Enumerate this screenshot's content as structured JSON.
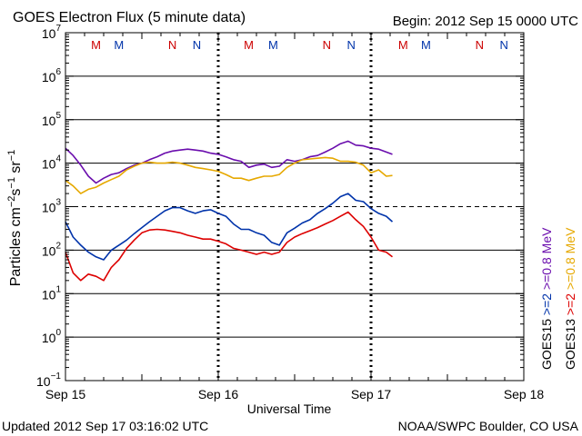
{
  "header": {
    "title": "GOES Electron Flux (5 minute data)",
    "begin": "Begin: 2012 Sep 15 0000 UTC"
  },
  "footer": {
    "updated": "Updated 2012 Sep 17 03:16:02 UTC",
    "credit": "NOAA/SWPC Boulder, CO USA"
  },
  "chart_data": {
    "type": "line",
    "title": "GOES Electron Flux (5 minute data)",
    "xlabel": "Universal Time",
    "ylabel": "Particles cm⁻²s⁻¹sr⁻¹",
    "yscale": "log",
    "ylim": [
      0.1,
      10000000
    ],
    "xlim": [
      0,
      3
    ],
    "x_units": "days since 2012 Sep 15 00:00 UTC",
    "x_ticks": [
      {
        "x": 0,
        "label": "Sep 15"
      },
      {
        "x": 1,
        "label": "Sep 16"
      },
      {
        "x": 2,
        "label": "Sep 17"
      },
      {
        "x": 3,
        "label": "Sep 18"
      }
    ],
    "y_ticks": [
      {
        "exp": 7,
        "base": "10",
        "sup": "7"
      },
      {
        "exp": 6,
        "base": "10",
        "sup": "6"
      },
      {
        "exp": 5,
        "base": "10",
        "sup": "5"
      },
      {
        "exp": 4,
        "base": "10",
        "sup": "4"
      },
      {
        "exp": 3,
        "base": "10",
        "sup": "3"
      },
      {
        "exp": 2,
        "base": "10",
        "sup": "2"
      },
      {
        "exp": 1,
        "base": "10",
        "sup": "1"
      },
      {
        "exp": 0,
        "base": "10",
        "sup": "0"
      },
      {
        "exp": -1,
        "base": "10",
        "sup": "−1"
      }
    ],
    "threshold_exp": 3,
    "day_markers": [
      1,
      2
    ],
    "mn_markers": [
      {
        "x": 0.2,
        "label": "M",
        "color": "#cc0000"
      },
      {
        "x": 0.35,
        "label": "M",
        "color": "#0033aa"
      },
      {
        "x": 0.7,
        "label": "N",
        "color": "#cc0000"
      },
      {
        "x": 0.86,
        "label": "N",
        "color": "#0033aa"
      },
      {
        "x": 1.2,
        "label": "M",
        "color": "#cc0000"
      },
      {
        "x": 1.36,
        "label": "M",
        "color": "#0033aa"
      },
      {
        "x": 1.71,
        "label": "N",
        "color": "#cc0000"
      },
      {
        "x": 1.87,
        "label": "N",
        "color": "#0033aa"
      },
      {
        "x": 2.21,
        "label": "M",
        "color": "#cc0000"
      },
      {
        "x": 2.36,
        "label": "M",
        "color": "#0033aa"
      },
      {
        "x": 2.71,
        "label": "N",
        "color": "#cc0000"
      },
      {
        "x": 2.87,
        "label": "N",
        "color": "#0033aa"
      }
    ],
    "legend": [
      {
        "text": "GOES15",
        "color": "#000000"
      },
      {
        "text": ">=2",
        "color": "#0033aa"
      },
      {
        "text": ">=0.8 MeV",
        "color": "#6a0dad"
      },
      {
        "text": "GOES13",
        "color": "#000000"
      },
      {
        "text": ">=2",
        "color": "#dd0000"
      },
      {
        "text": ">=0.8 MeV",
        "color": "#e6a800"
      }
    ],
    "series": [
      {
        "name": "GOES15 >=0.8 MeV",
        "color": "#6a0dad",
        "x": [
          0.0,
          0.05,
          0.1,
          0.15,
          0.2,
          0.25,
          0.3,
          0.35,
          0.4,
          0.45,
          0.5,
          0.55,
          0.6,
          0.65,
          0.7,
          0.75,
          0.8,
          0.85,
          0.9,
          0.95,
          1.0,
          1.05,
          1.1,
          1.15,
          1.2,
          1.25,
          1.3,
          1.35,
          1.4,
          1.45,
          1.5,
          1.55,
          1.6,
          1.65,
          1.7,
          1.75,
          1.8,
          1.85,
          1.9,
          1.95,
          2.0,
          2.05,
          2.1,
          2.14
        ],
        "y": [
          22000,
          15000,
          9000,
          5000,
          3500,
          4500,
          5500,
          6000,
          7500,
          9000,
          10000,
          12000,
          14000,
          17000,
          19000,
          20000,
          21000,
          20000,
          19000,
          17000,
          16000,
          14000,
          12000,
          11000,
          8000,
          9000,
          9500,
          8000,
          8500,
          12000,
          11000,
          12000,
          14000,
          15000,
          18000,
          22000,
          28000,
          32000,
          26000,
          25000,
          22000,
          21000,
          18000,
          16000
        ]
      },
      {
        "name": "GOES13 >=0.8 MeV",
        "color": "#e6a800",
        "x": [
          0.0,
          0.05,
          0.1,
          0.15,
          0.2,
          0.25,
          0.3,
          0.35,
          0.4,
          0.45,
          0.5,
          0.55,
          0.6,
          0.65,
          0.7,
          0.75,
          0.8,
          0.85,
          0.9,
          0.95,
          1.0,
          1.05,
          1.1,
          1.15,
          1.2,
          1.25,
          1.3,
          1.35,
          1.4,
          1.45,
          1.5,
          1.55,
          1.6,
          1.65,
          1.7,
          1.75,
          1.8,
          1.85,
          1.9,
          1.95,
          2.0,
          2.05,
          2.1,
          2.14
        ],
        "y": [
          4000,
          3000,
          2000,
          2500,
          2800,
          3500,
          4200,
          5000,
          7000,
          8500,
          10000,
          10500,
          10000,
          10000,
          10500,
          10000,
          9000,
          8000,
          7500,
          7000,
          6500,
          5500,
          4500,
          4500,
          4000,
          4500,
          5000,
          5000,
          5500,
          8000,
          10000,
          12000,
          12500,
          13000,
          13500,
          13000,
          11000,
          11000,
          10500,
          9000,
          6000,
          7000,
          5000,
          5200
        ]
      },
      {
        "name": "GOES15 >=2",
        "color": "#0033aa",
        "x": [
          0.0,
          0.05,
          0.1,
          0.15,
          0.2,
          0.25,
          0.3,
          0.35,
          0.4,
          0.45,
          0.5,
          0.55,
          0.6,
          0.65,
          0.7,
          0.75,
          0.8,
          0.85,
          0.9,
          0.95,
          1.0,
          1.05,
          1.1,
          1.15,
          1.2,
          1.25,
          1.3,
          1.35,
          1.4,
          1.45,
          1.5,
          1.55,
          1.6,
          1.65,
          1.7,
          1.75,
          1.8,
          1.85,
          1.9,
          1.95,
          2.0,
          2.05,
          2.1,
          2.14
        ],
        "y": [
          450,
          200,
          130,
          90,
          70,
          60,
          100,
          130,
          170,
          240,
          330,
          450,
          600,
          800,
          950,
          950,
          800,
          700,
          800,
          850,
          700,
          600,
          400,
          300,
          300,
          250,
          220,
          150,
          130,
          250,
          320,
          420,
          500,
          700,
          900,
          1200,
          1700,
          2000,
          1400,
          1300,
          900,
          700,
          600,
          450
        ]
      },
      {
        "name": "GOES13 >=2",
        "color": "#dd0000",
        "x": [
          0.0,
          0.05,
          0.1,
          0.15,
          0.2,
          0.25,
          0.3,
          0.35,
          0.4,
          0.45,
          0.5,
          0.55,
          0.6,
          0.65,
          0.7,
          0.75,
          0.8,
          0.85,
          0.9,
          0.95,
          1.0,
          1.05,
          1.1,
          1.15,
          1.2,
          1.25,
          1.3,
          1.35,
          1.4,
          1.45,
          1.5,
          1.55,
          1.6,
          1.65,
          1.7,
          1.75,
          1.8,
          1.85,
          1.9,
          1.95,
          2.0,
          2.05,
          2.1,
          2.14
        ],
        "y": [
          90,
          30,
          20,
          28,
          25,
          20,
          40,
          60,
          110,
          170,
          250,
          290,
          300,
          290,
          270,
          250,
          220,
          200,
          180,
          180,
          160,
          140,
          110,
          100,
          90,
          80,
          90,
          80,
          90,
          150,
          200,
          240,
          280,
          330,
          400,
          480,
          600,
          750,
          500,
          350,
          200,
          100,
          90,
          70
        ]
      }
    ]
  }
}
